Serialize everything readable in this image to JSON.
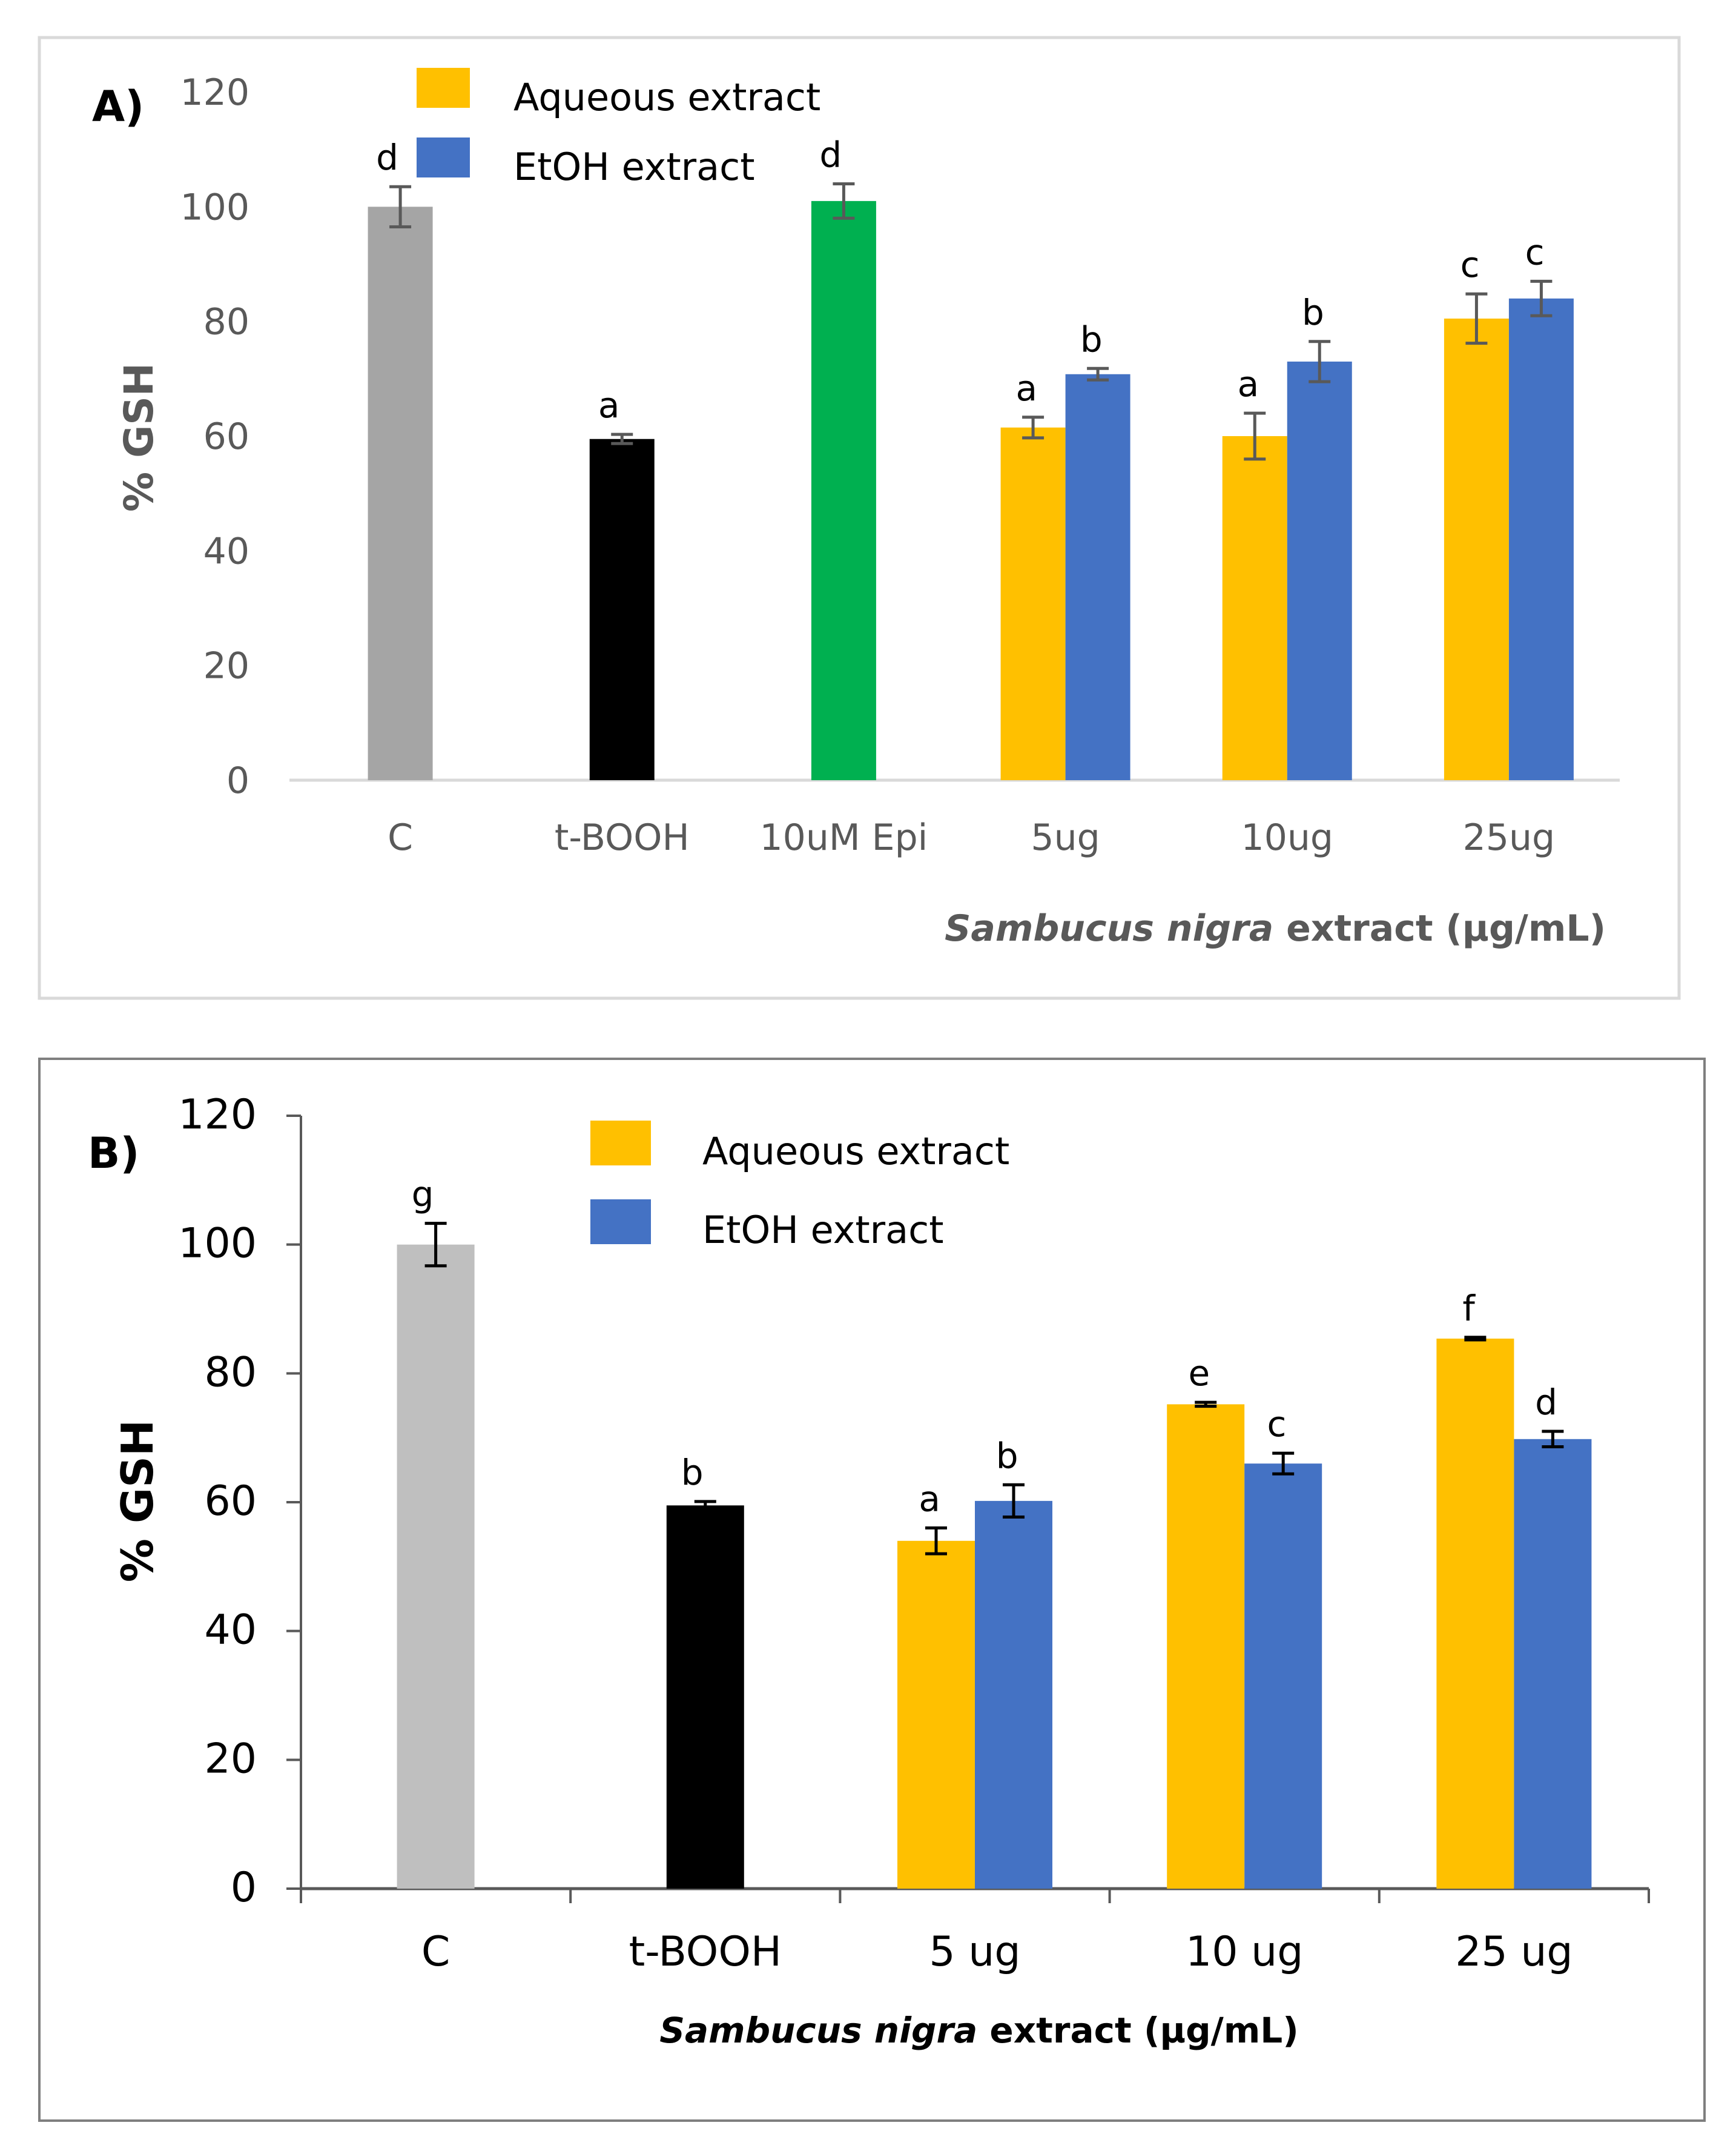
{
  "chart_data": [
    {
      "type": "bar",
      "panel_label": "A)",
      "ylabel": "% GSH",
      "xlabel_italic": "Sambucus nigra",
      "xlabel_rest": " extract (µg/mL)",
      "ylim": [
        0,
        120
      ],
      "yticks": [
        "0",
        "20",
        "40",
        "60",
        "80",
        "100",
        "120"
      ],
      "legend": [
        {
          "label": "Aqueous extract",
          "color": "#FFC000"
        },
        {
          "label": "EtOH extract",
          "color": "#4472C4"
        }
      ],
      "categories": [
        "C",
        "t-BOOH",
        "10uM Epi",
        "5ug",
        "10ug",
        "25ug"
      ],
      "groups": [
        {
          "bars": [
            {
              "value": 100,
              "error": 3.5,
              "color": "#A5A5A5",
              "letter": "d"
            }
          ]
        },
        {
          "bars": [
            {
              "value": 59.5,
              "error": 0.8,
              "color": "#000000",
              "letter": "a"
            }
          ]
        },
        {
          "bars": [
            {
              "value": 101,
              "error": 3,
              "color": "#00B050",
              "letter": "d"
            }
          ]
        },
        {
          "bars": [
            {
              "value": 61.5,
              "error": 1.8,
              "color": "#FFC000",
              "letter": "a"
            },
            {
              "value": 70.8,
              "error": 1,
              "color": "#4472C4",
              "letter": "b"
            }
          ]
        },
        {
          "bars": [
            {
              "value": 60,
              "error": 4,
              "color": "#FFC000",
              "letter": "a"
            },
            {
              "value": 73,
              "error": 3.5,
              "color": "#4472C4",
              "letter": "b"
            }
          ]
        },
        {
          "bars": [
            {
              "value": 80.5,
              "error": 4.3,
              "color": "#FFC000",
              "letter": "c"
            },
            {
              "value": 84,
              "error": 3,
              "color": "#4472C4",
              "letter": "c"
            }
          ]
        }
      ]
    },
    {
      "type": "bar",
      "panel_label": "B)",
      "ylabel": "% GSH",
      "xlabel_italic": "Sambucus nigra",
      "xlabel_rest": " extract (µg/mL)",
      "ylim": [
        0,
        120
      ],
      "yticks": [
        "0",
        "20",
        "40",
        "60",
        "80",
        "100",
        "120"
      ],
      "legend": [
        {
          "label": "Aqueous extract",
          "color": "#FFC000"
        },
        {
          "label": "EtOH extract",
          "color": "#4472C4"
        }
      ],
      "categories": [
        "C",
        "t-BOOH",
        "5 ug",
        "10 ug",
        "25 ug"
      ],
      "groups": [
        {
          "bars": [
            {
              "value": 100,
              "error": 3.3,
              "color": "#BFBFBF",
              "letter": "g"
            }
          ]
        },
        {
          "bars": [
            {
              "value": 59.5,
              "error": 0.6,
              "color": "#000000",
              "letter": "b"
            }
          ]
        },
        {
          "bars": [
            {
              "value": 54,
              "error": 2,
              "color": "#FFC000",
              "letter": "a"
            },
            {
              "value": 60.2,
              "error": 2.5,
              "color": "#4472C4",
              "letter": "b"
            }
          ]
        },
        {
          "bars": [
            {
              "value": 75.2,
              "error": 0.3,
              "color": "#FFC000",
              "letter": "e"
            },
            {
              "value": 66,
              "error": 1.6,
              "color": "#4472C4",
              "letter": "c"
            }
          ]
        },
        {
          "bars": [
            {
              "value": 85.4,
              "error": 0.2,
              "color": "#FFC000",
              "letter": "f"
            },
            {
              "value": 69.8,
              "error": 1.2,
              "color": "#4472C4",
              "letter": "d"
            }
          ]
        }
      ]
    }
  ]
}
